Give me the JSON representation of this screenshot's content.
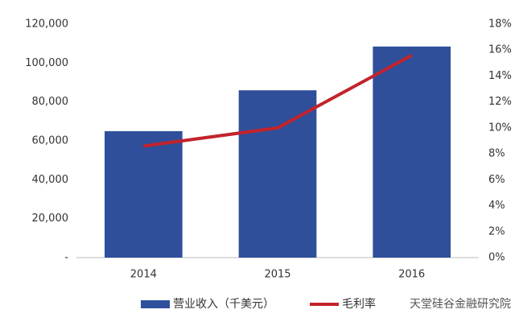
{
  "chart_data": {
    "type": "bar",
    "categories": [
      "2014",
      "2015",
      "2016"
    ],
    "series": [
      {
        "name": "营业收入（千美元）",
        "type": "bar",
        "color": "#2f4f9b",
        "values": [
          65000,
          86000,
          108500
        ]
      },
      {
        "name": "毛利率",
        "type": "line",
        "axis": "y2",
        "color": "#c3232b",
        "values": [
          8.6,
          10,
          15.6
        ]
      }
    ],
    "ylim": [
      0,
      120000
    ],
    "yticks": [
      {
        "value": 0,
        "label": "-"
      },
      {
        "value": 20000,
        "label": "20,000"
      },
      {
        "value": 40000,
        "label": "40,000"
      },
      {
        "value": 60000,
        "label": "60,000"
      },
      {
        "value": 80000,
        "label": "80,000"
      },
      {
        "value": 100000,
        "label": "100,000"
      },
      {
        "value": 120000,
        "label": "120,000"
      }
    ],
    "y2lim": [
      0,
      18
    ],
    "y2ticks": [
      {
        "value": 0,
        "label": "0%"
      },
      {
        "value": 2,
        "label": "2%"
      },
      {
        "value": 4,
        "label": "4%"
      },
      {
        "value": 6,
        "label": "6%"
      },
      {
        "value": 8,
        "label": "8%"
      },
      {
        "value": 10,
        "label": "10%"
      },
      {
        "value": 12,
        "label": "12%"
      },
      {
        "value": 14,
        "label": "14%"
      },
      {
        "value": 16,
        "label": "16%"
      },
      {
        "value": 18,
        "label": "18%"
      }
    ],
    "annotation": "天堂硅谷金融研究院"
  }
}
